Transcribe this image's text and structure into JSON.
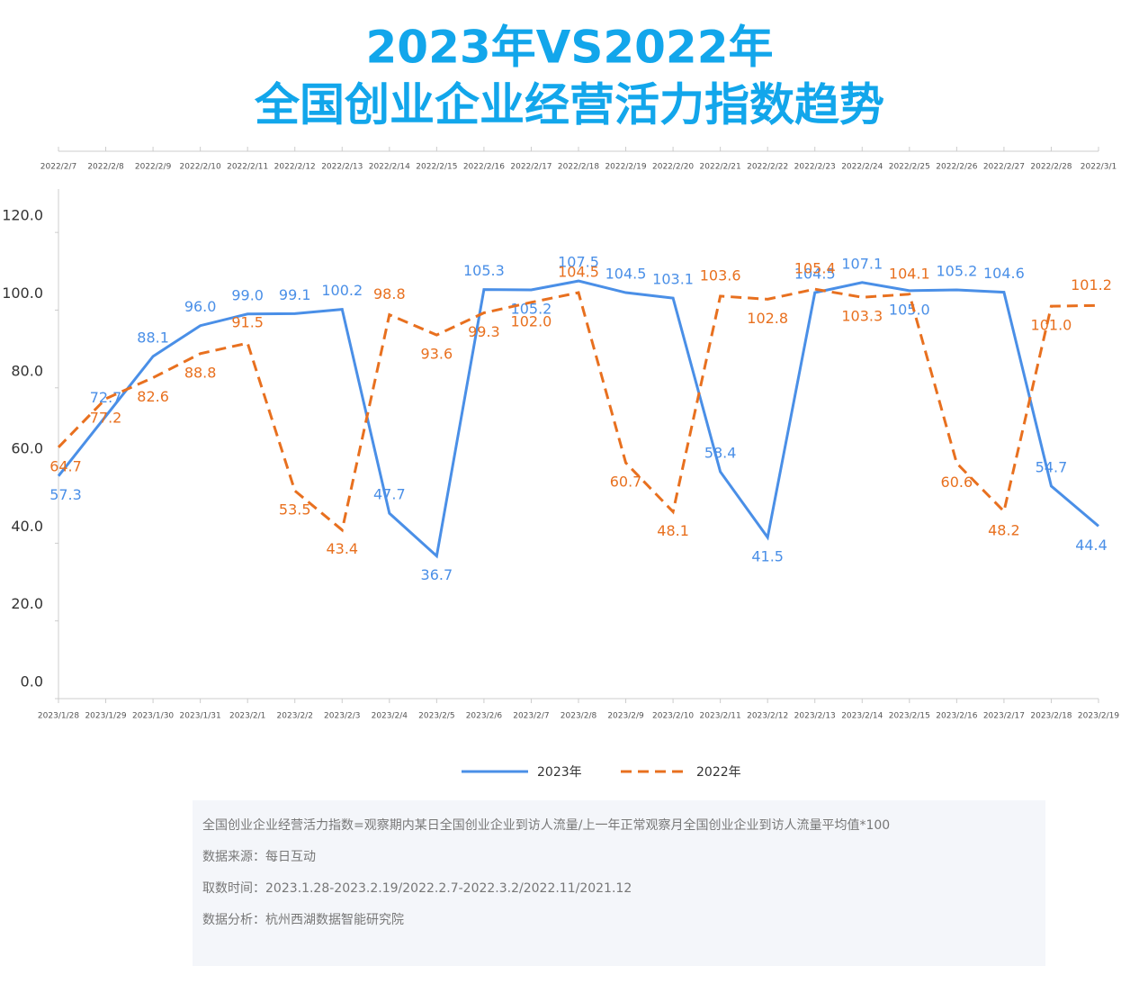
{
  "chart_data": {
    "type": "line",
    "title": [
      "2023年VS2022年",
      "全国创业企业经营活力指数趋势"
    ],
    "categories": [
      "2023/1/28",
      "2023/1/29",
      "2023/1/30",
      "2023/1/31",
      "2023/2/1",
      "2023/2/2",
      "2023/2/3",
      "2023/2/4",
      "2023/2/5",
      "2023/2/6",
      "2023/2/7",
      "2023/2/8",
      "2023/2/9",
      "2023/2/10",
      "2023/2/11",
      "2023/2/12",
      "2023/2/13",
      "2023/2/14",
      "2023/2/15",
      "2023/2/16",
      "2023/2/17",
      "2023/2/18",
      "2023/2/19"
    ],
    "top_categories": [
      "2022/2/7",
      "2022/2/8",
      "2022/2/9",
      "2022/2/10",
      "2022/2/11",
      "2022/2/12",
      "2022/2/13",
      "2022/2/14",
      "2022/2/15",
      "2022/2/16",
      "2022/2/17",
      "2022/2/18",
      "2022/2/19",
      "2022/2/20",
      "2022/2/21",
      "2022/2/22",
      "2022/2/23",
      "2022/2/24",
      "2022/2/25",
      "2022/2/26",
      "2022/2/27",
      "2022/2/28",
      "2022/3/1"
    ],
    "series": [
      {
        "name": "2023年",
        "color": "#4a8fe7",
        "dashed": false,
        "values": [
          57.3,
          72.7,
          88.1,
          96.0,
          99.0,
          99.1,
          100.2,
          47.7,
          36.7,
          105.3,
          105.2,
          107.5,
          104.5,
          103.1,
          58.4,
          41.5,
          104.5,
          107.1,
          105.0,
          105.2,
          104.6,
          54.7,
          44.4
        ],
        "value_labels": [
          "57.3",
          "72.7",
          "88.1",
          "96.0",
          "99.0",
          "99.1",
          "100.2",
          "47.7",
          "36.7",
          "105.3",
          "105.2",
          "107.5",
          "104.5",
          "103.1",
          "58.4",
          "41.5",
          "104.5",
          "107.1",
          "105.0",
          "105.2",
          "104.6",
          "54.7",
          "44.4"
        ]
      },
      {
        "name": "2022年",
        "color": "#e8701f",
        "dashed": true,
        "values": [
          64.7,
          77.2,
          82.6,
          88.8,
          91.5,
          53.5,
          43.4,
          98.8,
          93.6,
          99.3,
          102.0,
          104.5,
          60.7,
          48.1,
          103.6,
          102.8,
          105.4,
          103.3,
          104.1,
          60.6,
          48.2,
          101.0,
          101.2
        ],
        "value_labels": [
          "64.7",
          "77.2",
          "82.6",
          "88.8",
          "91.5",
          "53.5",
          "43.4",
          "98.8",
          "93.6",
          "99.3",
          "102.0",
          "104.5",
          "60.7",
          "48.1",
          "103.6",
          "102.8",
          "105.4",
          "103.3",
          "104.1",
          "60.6",
          "48.2",
          "101.0",
          "101.2"
        ]
      }
    ],
    "ylim": [
      0,
      130
    ],
    "yticks": [
      {
        "value": 0,
        "label": "0.0"
      },
      {
        "value": 20,
        "label": "20.0"
      },
      {
        "value": 40,
        "label": "40.0"
      },
      {
        "value": 60,
        "label": "60.0"
      },
      {
        "value": 80,
        "label": "80.0"
      },
      {
        "value": 100,
        "label": "100.0"
      },
      {
        "value": 120,
        "label": "120.0"
      }
    ],
    "notes": [
      "全国创业企业经营活力指数=观察期内某日全国创业企业到访人流量/上一年正常观察月全国创业企业到访人流量平均值*100",
      "数据来源：每日互动",
      "取数时间：2023.1.28-2023.2.19/2022.2.7-2022.3.2/2022.11/2021.12",
      "数据分析：杭州西湖数据智能研究院"
    ]
  }
}
